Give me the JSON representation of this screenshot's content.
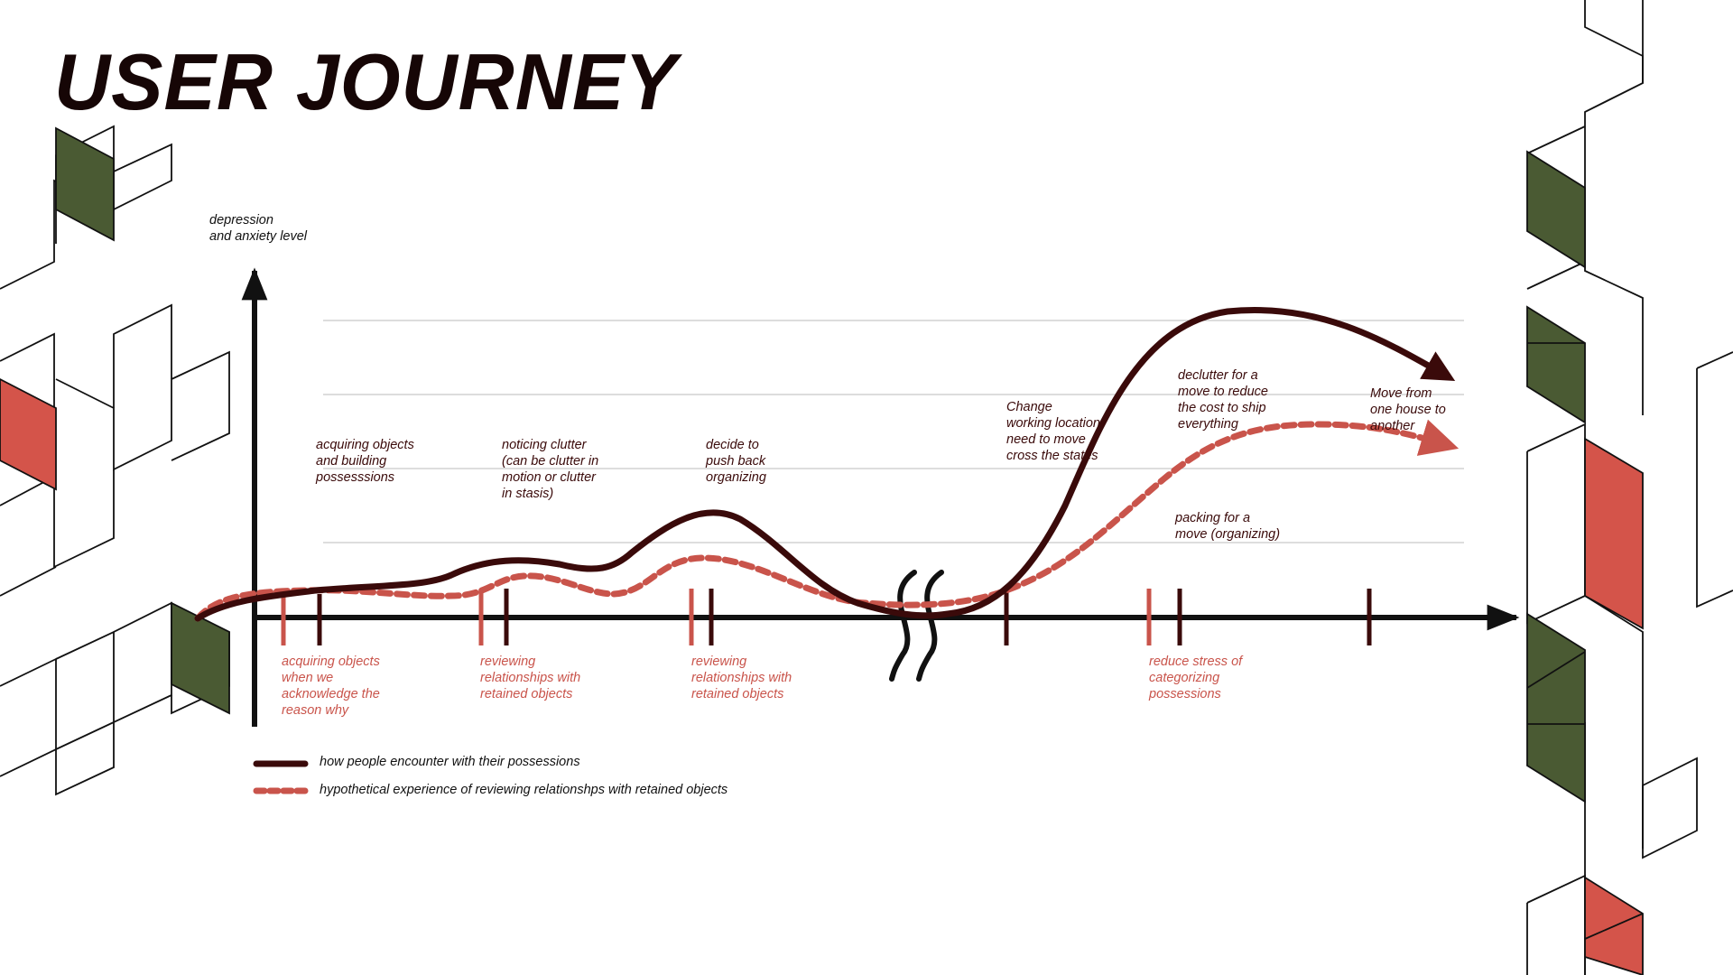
{
  "title": "USER JOURNEY",
  "y_axis_label": [
    "depression",
    "and anxiety level"
  ],
  "colors": {
    "dark_line": "#3a0a0a",
    "red_line": "#c9544b",
    "green_block": "#4a5a33",
    "red_block": "#d4544a"
  },
  "phase_labels_top": [
    {
      "lines": [
        "acquiring objects",
        "and building",
        "possesssions"
      ]
    },
    {
      "lines": [
        "noticing clutter",
        "(can be clutter in",
        "motion or clutter",
        "in stasis)"
      ]
    },
    {
      "lines": [
        "decide to",
        "push back",
        "organizing"
      ]
    },
    {
      "lines": [
        "Change",
        "working location",
        "need to move",
        "cross the states"
      ]
    },
    {
      "lines": [
        "declutter for a",
        "move to reduce",
        "the cost to ship",
        "everything"
      ]
    },
    {
      "lines": [
        "Move from",
        "one house to",
        "another"
      ]
    }
  ],
  "packing_label": [
    "packing for a",
    "move (organizing)"
  ],
  "phase_labels_bottom": [
    {
      "lines": [
        "acquiring objects",
        "when we",
        "acknowledge the",
        "reason why"
      ]
    },
    {
      "lines": [
        "reviewing",
        "relationships with",
        "retained objects"
      ]
    },
    {
      "lines": [
        "reviewing",
        "relationships with",
        "retained objects"
      ]
    },
    {
      "lines": [
        "reduce stress of",
        "categorizing",
        "possessions"
      ]
    }
  ],
  "legend": [
    {
      "label": "how people encounter with their possessions",
      "style": "solid"
    },
    {
      "label": "hypothetical experience of reviewing relationshps with retained objects",
      "style": "dashed"
    }
  ]
}
